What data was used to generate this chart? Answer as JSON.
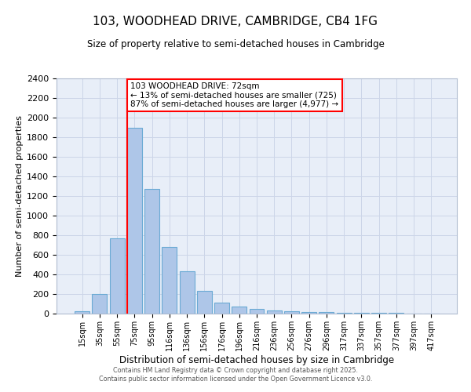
{
  "title_line1": "103, WOODHEAD DRIVE, CAMBRIDGE, CB4 1FG",
  "title_line2": "Size of property relative to semi-detached houses in Cambridge",
  "xlabel": "Distribution of semi-detached houses by size in Cambridge",
  "ylabel": "Number of semi-detached properties",
  "categories": [
    "15sqm",
    "35sqm",
    "55sqm",
    "75sqm",
    "95sqm",
    "116sqm",
    "136sqm",
    "156sqm",
    "176sqm",
    "196sqm",
    "216sqm",
    "236sqm",
    "256sqm",
    "276sqm",
    "296sqm",
    "317sqm",
    "337sqm",
    "357sqm",
    "377sqm",
    "397sqm",
    "417sqm"
  ],
  "bar_heights": [
    25,
    200,
    770,
    1900,
    1275,
    680,
    435,
    230,
    110,
    70,
    45,
    30,
    25,
    20,
    15,
    10,
    5,
    5,
    5,
    2,
    2
  ],
  "bar_color": "#aec6e8",
  "bar_edge_color": "#6aaad4",
  "vline_x_index": 3,
  "vline_color": "red",
  "annotation_title": "103 WOODHEAD DRIVE: 72sqm",
  "annotation_line2": "← 13% of semi-detached houses are smaller (725)",
  "annotation_line3": "87% of semi-detached houses are larger (4,977) →",
  "annotation_box_color": "white",
  "annotation_box_edge": "red",
  "ylim": [
    0,
    2400
  ],
  "yticks": [
    0,
    200,
    400,
    600,
    800,
    1000,
    1200,
    1400,
    1600,
    1800,
    2000,
    2200,
    2400
  ],
  "grid_color": "#ccd5e8",
  "bg_color": "#e8eef8",
  "footer_line1": "Contains HM Land Registry data © Crown copyright and database right 2025.",
  "footer_line2": "Contains public sector information licensed under the Open Government Licence v3.0."
}
